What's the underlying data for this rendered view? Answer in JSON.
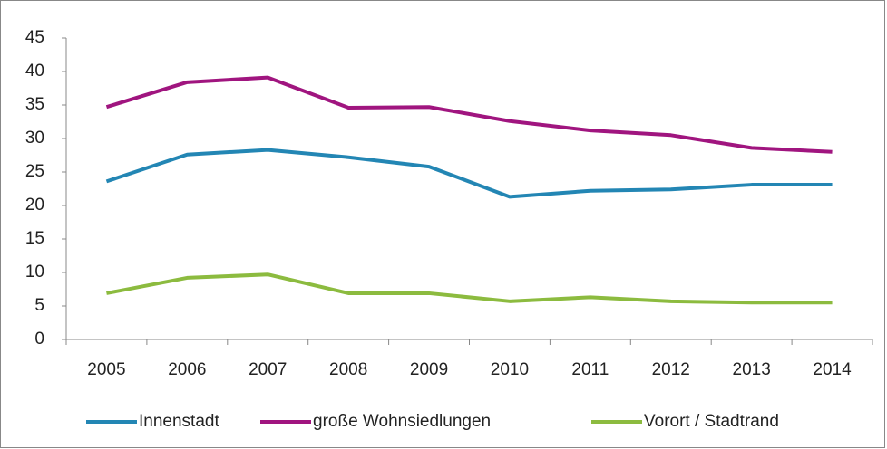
{
  "chart_data": {
    "type": "line",
    "categories": [
      "2005",
      "2006",
      "2007",
      "2008",
      "2009",
      "2010",
      "2011",
      "2012",
      "2013",
      "2014"
    ],
    "series": [
      {
        "name": "Innenstadt",
        "color": "#2386b4",
        "values": [
          23.6,
          27.6,
          28.3,
          27.2,
          25.8,
          21.3,
          22.2,
          22.4,
          23.1,
          23.1
        ]
      },
      {
        "name": "große Wohnsiedlungen",
        "color": "#a0157f",
        "values": [
          34.7,
          38.4,
          39.1,
          34.6,
          34.7,
          32.6,
          31.2,
          30.5,
          28.6,
          28.0
        ]
      },
      {
        "name": "Vorort / Stadtrand",
        "color": "#8cbb3f",
        "values": [
          6.9,
          9.2,
          9.7,
          6.9,
          6.9,
          5.7,
          6.3,
          5.7,
          5.5,
          5.5
        ]
      }
    ],
    "ylim": [
      0,
      45
    ],
    "yticks": [
      0,
      5,
      10,
      15,
      20,
      25,
      30,
      35,
      40,
      45
    ],
    "grid": false,
    "legend": "bottom"
  }
}
